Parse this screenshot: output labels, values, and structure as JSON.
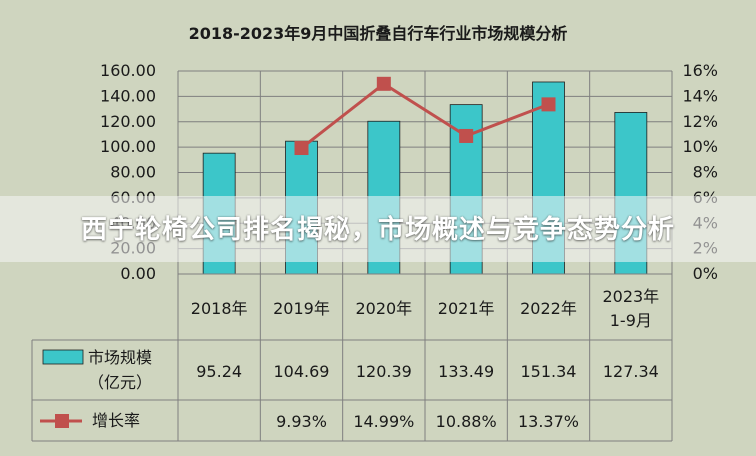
{
  "chart_data": {
    "type": "bar",
    "title": "2018-2023年9月中国折叠自行车行业市场规模分析",
    "categories": [
      "2018年",
      "2019年",
      "2020年",
      "2021年",
      "2022年",
      "2023年\n1-9月"
    ],
    "series": [
      {
        "name": "市场规模\n（亿元）",
        "kind": "bar",
        "axis": "left",
        "color": "#3cc6c9",
        "values": [
          95.24,
          104.69,
          120.39,
          133.49,
          151.34,
          127.34
        ],
        "labels": [
          "95.24",
          "104.69",
          "120.39",
          "133.49",
          "151.34",
          "127.34"
        ]
      },
      {
        "name": "增长率",
        "kind": "line",
        "axis": "right",
        "color": "#c0504d",
        "values": [
          null,
          9.93,
          14.99,
          10.88,
          13.37,
          null
        ],
        "labels": [
          "",
          "9.93%",
          "14.99%",
          "10.88%",
          "13.37%",
          ""
        ]
      }
    ],
    "y_left": {
      "range": [
        0,
        160
      ],
      "ticks": [
        "0.00",
        "20.00",
        "40.00",
        "60.00",
        "80.00",
        "100.00",
        "120.00",
        "140.00",
        "160.00"
      ]
    },
    "y_right": {
      "range": [
        0,
        16
      ],
      "ticks": [
        "0%",
        "2%",
        "4%",
        "6%",
        "8%",
        "10%",
        "12%",
        "14%",
        "16%"
      ]
    },
    "grid": true,
    "legend": "data-table-left"
  },
  "banner": {
    "text": "西宁轮椅公司排名揭秘，市场概述与竞争态势分析"
  }
}
